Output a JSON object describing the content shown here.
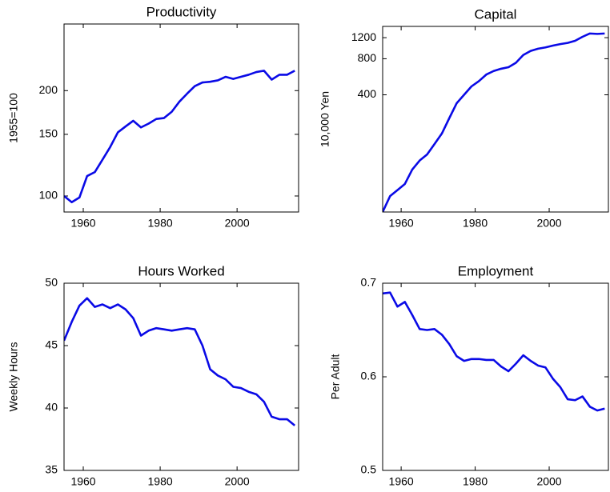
{
  "chart_data": [
    {
      "type": "line",
      "title": "Productivity",
      "y_label": "1955=100",
      "log_y": true,
      "color": "#0a0ae6",
      "x": [
        1955,
        1957,
        1959,
        1961,
        1963,
        1965,
        1967,
        1969,
        1971,
        1973,
        1975,
        1977,
        1979,
        1981,
        1983,
        1985,
        1987,
        1989,
        1991,
        1993,
        1995,
        1997,
        1999,
        2001,
        2003,
        2005,
        2007,
        2009,
        2011,
        2013,
        2015
      ],
      "values": [
        100,
        96,
        99,
        114,
        117,
        127,
        138,
        152,
        158,
        164,
        157,
        161,
        166,
        167,
        174,
        186,
        196,
        206,
        211,
        212,
        214,
        219,
        216,
        219,
        222,
        226,
        228,
        215,
        222,
        222,
        228
      ],
      "xlim": [
        1955,
        2016
      ],
      "xticks": [
        1960,
        1980,
        2000
      ],
      "ylim": [
        90,
        310
      ],
      "yticks": [
        100,
        150,
        200
      ]
    },
    {
      "type": "line",
      "title": "Capital",
      "y_label": "10,000 Yen",
      "log_y": true,
      "color": "#0a0ae6",
      "x": [
        1955,
        1957,
        1959,
        1961,
        1963,
        1965,
        1967,
        1969,
        1971,
        1973,
        1975,
        1977,
        1979,
        1981,
        1983,
        1985,
        1987,
        1989,
        1991,
        1993,
        1995,
        1997,
        1999,
        2001,
        2003,
        2005,
        2007,
        2009,
        2011,
        2013,
        2015
      ],
      "values": [
        42,
        57,
        64,
        72,
        95,
        113,
        127,
        155,
        190,
        255,
        340,
        400,
        470,
        520,
        590,
        632,
        660,
        680,
        740,
        860,
        930,
        970,
        995,
        1030,
        1060,
        1085,
        1130,
        1220,
        1300,
        1290,
        1300
      ],
      "xlim": [
        1955,
        2016
      ],
      "xticks": [
        1960,
        1980,
        2000
      ],
      "ylim": [
        42,
        1490
      ],
      "yticks": [
        400,
        800,
        1200
      ]
    },
    {
      "type": "line",
      "title": "Hours Worked",
      "y_label": "Weekly Hours",
      "log_y": false,
      "color": "#0a0ae6",
      "x": [
        1955,
        1957,
        1959,
        1961,
        1963,
        1965,
        1967,
        1969,
        1971,
        1973,
        1975,
        1977,
        1979,
        1981,
        1983,
        1985,
        1987,
        1989,
        1991,
        1993,
        1995,
        1997,
        1999,
        2001,
        2003,
        2005,
        2007,
        2009,
        2011,
        2013,
        2015
      ],
      "values": [
        45.4,
        46.9,
        48.2,
        48.8,
        48.1,
        48.3,
        48.0,
        48.3,
        47.9,
        47.2,
        45.8,
        46.2,
        46.4,
        46.3,
        46.2,
        46.3,
        46.4,
        46.3,
        45.0,
        43.1,
        42.6,
        42.3,
        41.7,
        41.6,
        41.3,
        41.1,
        40.5,
        39.3,
        39.1,
        39.1,
        38.6
      ],
      "xlim": [
        1955,
        2016
      ],
      "xticks": [
        1960,
        1980,
        2000
      ],
      "ylim": [
        35,
        50
      ],
      "yticks": [
        35,
        40,
        45,
        50
      ]
    },
    {
      "type": "line",
      "title": "Employment",
      "y_label": "Per Adult",
      "log_y": false,
      "color": "#0a0ae6",
      "x": [
        1955,
        1957,
        1959,
        1961,
        1963,
        1965,
        1967,
        1969,
        1971,
        1973,
        1975,
        1977,
        1979,
        1981,
        1983,
        1985,
        1987,
        1989,
        1991,
        1993,
        1995,
        1997,
        1999,
        2001,
        2003,
        2005,
        2007,
        2009,
        2011,
        2013,
        2015
      ],
      "values": [
        0.689,
        0.69,
        0.675,
        0.68,
        0.666,
        0.651,
        0.65,
        0.651,
        0.645,
        0.635,
        0.622,
        0.617,
        0.619,
        0.619,
        0.618,
        0.618,
        0.611,
        0.606,
        0.614,
        0.623,
        0.617,
        0.612,
        0.61,
        0.598,
        0.589,
        0.576,
        0.575,
        0.579,
        0.568,
        0.564,
        0.566
      ],
      "xlim": [
        1955,
        2016
      ],
      "xticks": [
        1960,
        1980,
        2000
      ],
      "ylim": [
        0.5,
        0.7
      ],
      "yticks": [
        0.5,
        0.6,
        0.7
      ]
    }
  ]
}
